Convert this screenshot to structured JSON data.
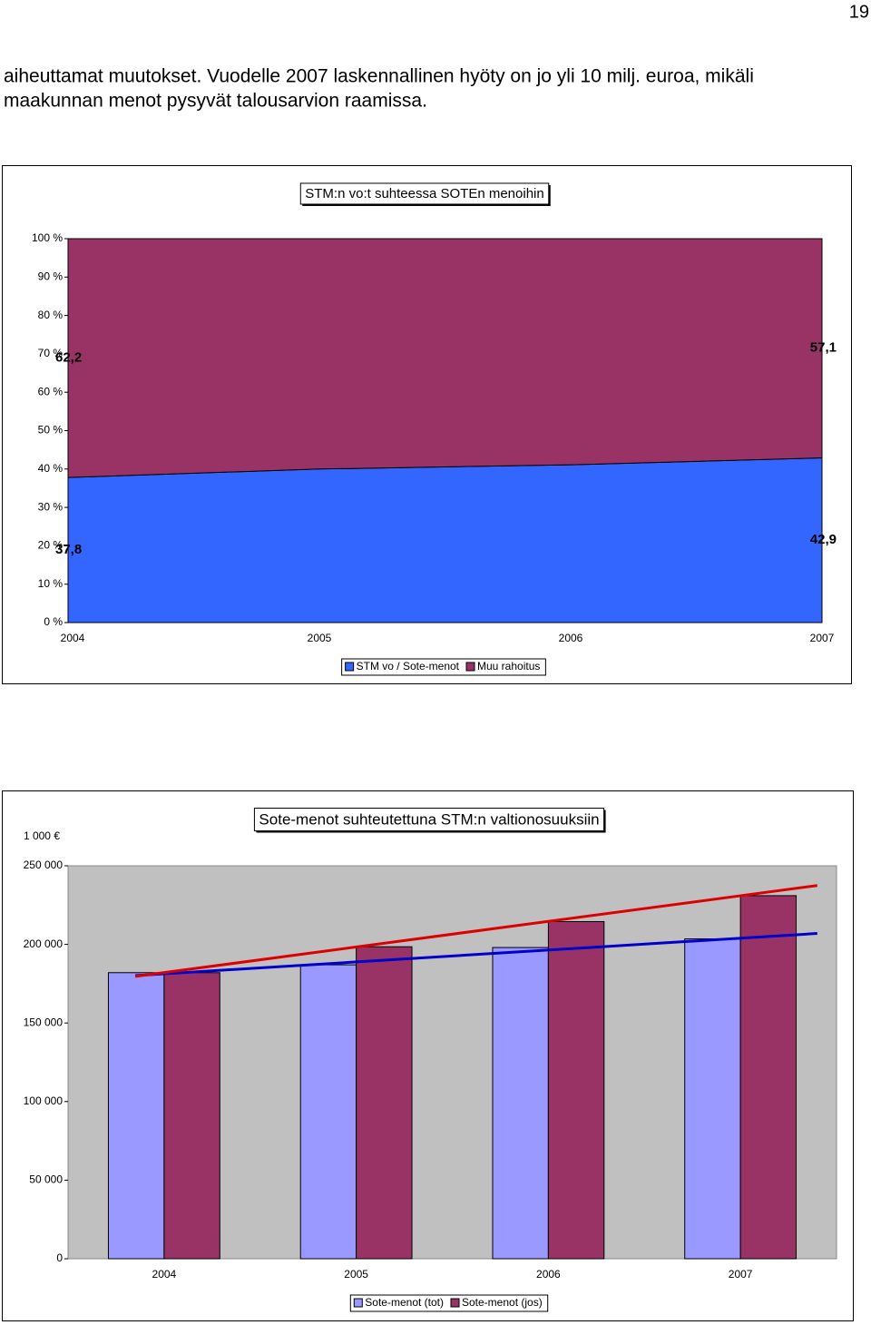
{
  "page_number": "19",
  "text": [
    "aiheuttamat muutokset.  Vuodelle 2007 laskennallinen hyöty on jo yli 10 milj. euroa, mikäli",
    "maakunnan menot pysyvät talousarvion raamissa."
  ],
  "chart_data": [
    {
      "type": "area",
      "stacked": true,
      "title": "STM:n vo:t suhteessa SOTEn menoihin",
      "categories": [
        "2004",
        "2005",
        "2006",
        "2007"
      ],
      "series": [
        {
          "name": "STM vo / Sote-menot",
          "color": "#3366ff",
          "values": [
            37.8,
            40.0,
            41.1,
            42.9
          ],
          "value_labels": [
            "37,8",
            null,
            null,
            "42,9"
          ]
        },
        {
          "name": "Muu rahoitus",
          "color": "#993366",
          "values": [
            62.2,
            60.0,
            58.9,
            57.1
          ],
          "value_labels": [
            "62,2",
            null,
            null,
            "57,1"
          ]
        }
      ],
      "ylim": [
        0,
        100
      ],
      "yticks": [
        {
          "value": 0,
          "label": "0 %"
        },
        {
          "value": 10,
          "label": "10 %"
        },
        {
          "value": 20,
          "label": "20 %"
        },
        {
          "value": 30,
          "label": "30 %"
        },
        {
          "value": 40,
          "label": "40 %"
        },
        {
          "value": 50,
          "label": "50 %"
        },
        {
          "value": 60,
          "label": "60 %"
        },
        {
          "value": 70,
          "label": "70 %"
        },
        {
          "value": 80,
          "label": "80 %"
        },
        {
          "value": 90,
          "label": "90 %"
        },
        {
          "value": 100,
          "label": "100 %"
        }
      ],
      "legend": "bottom"
    },
    {
      "type": "bar",
      "title": "Sote-menot suhteutettuna STM:n valtionosuuksiin",
      "y_label": "1 000 €",
      "categories": [
        "2004",
        "2005",
        "2006",
        "2007"
      ],
      "series": [
        {
          "name": "Sote-menot (tot)",
          "color": "#9999ff",
          "trend_color": "#0000cc",
          "values": [
            182000,
            187000,
            198000,
            203500
          ]
        },
        {
          "name": "Sote-menot (jos)",
          "color": "#993366",
          "trend_color": "#dd0000",
          "values": [
            182000,
            198500,
            214500,
            231000
          ]
        }
      ],
      "trendline": true,
      "background": "#c0c0c0",
      "ylim": [
        0,
        250000
      ],
      "yticks": [
        0,
        {
          "value": 50000,
          "label": "50 000"
        },
        {
          "value": 100000,
          "label": "100 000"
        },
        {
          "value": 150000,
          "label": "150 000"
        },
        {
          "value": 200000,
          "label": "200 000"
        },
        {
          "value": 250000,
          "label": "250 000"
        }
      ],
      "legend": "bottom"
    }
  ]
}
